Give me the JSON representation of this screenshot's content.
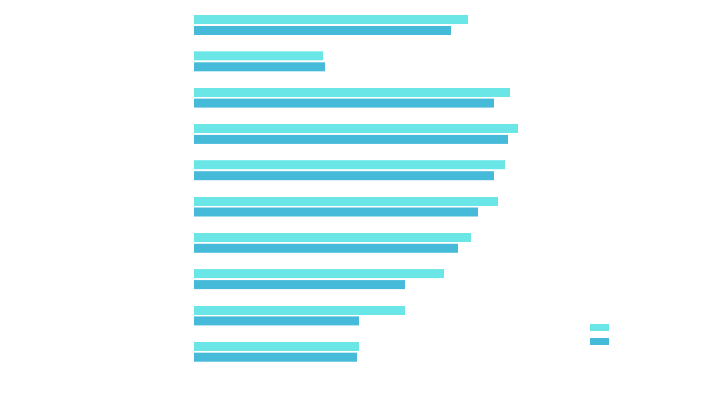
{
  "chart_data": {
    "type": "bar",
    "orientation": "horizontal",
    "title": "",
    "xlabel": "",
    "ylabel": "",
    "grid": false,
    "legend": "bottom-right",
    "categories": [
      "",
      "",
      "",
      "",
      "",
      "",
      "",
      "",
      "",
      ""
    ],
    "series": [
      {
        "color": "#6ae6e6",
        "values": [
          394,
          185,
          454,
          466,
          448,
          437,
          398,
          359,
          304,
          237
        ]
      },
      {
        "color": "#45bad9",
        "values": [
          370,
          189,
          431,
          452,
          431,
          408,
          380,
          304,
          238,
          234
        ]
      }
    ],
    "xlim": [
      0,
      500
    ]
  }
}
